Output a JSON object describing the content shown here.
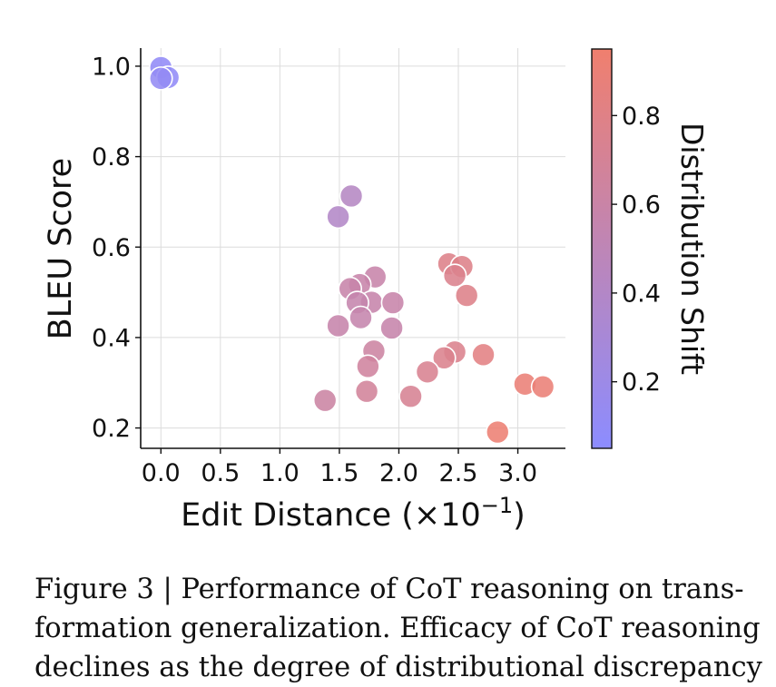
{
  "chart_data": {
    "type": "scatter",
    "xlabel_prefix": "Edit Distance (×10",
    "xlabel_exp": "−1",
    "xlabel_suffix": ")",
    "ylabel": "BLEU Score",
    "colorbar_label": "Distribution Shift",
    "xlim": [
      -0.17,
      3.4
    ],
    "ylim": [
      0.155,
      1.04
    ],
    "x_ticks": [
      0.0,
      0.5,
      1.0,
      1.5,
      2.0,
      2.5,
      3.0
    ],
    "x_tick_labels": [
      "0.0",
      "0.5",
      "1.0",
      "1.5",
      "2.0",
      "2.5",
      "3.0"
    ],
    "y_ticks": [
      0.2,
      0.4,
      0.6,
      0.8,
      1.0
    ],
    "y_tick_labels": [
      "0.2",
      "0.4",
      "0.6",
      "0.8",
      "1.0"
    ],
    "colorbar_range": [
      0.05,
      0.95
    ],
    "colorbar_ticks": [
      0.2,
      0.4,
      0.6,
      0.8
    ],
    "colorbar_tick_labels": [
      "0.2",
      "0.4",
      "0.6",
      "0.8"
    ],
    "colormap": [
      "#8c8cff",
      "#f07f6e"
    ],
    "grid": true,
    "points": [
      {
        "x": 0.0,
        "y": 0.997,
        "c": 0.1
      },
      {
        "x": 0.06,
        "y": 0.975,
        "c": 0.1
      },
      {
        "x": 0.0,
        "y": 0.973,
        "c": 0.12
      },
      {
        "x": 1.6,
        "y": 0.713,
        "c": 0.42
      },
      {
        "x": 1.49,
        "y": 0.667,
        "c": 0.4
      },
      {
        "x": 2.42,
        "y": 0.563,
        "c": 0.78
      },
      {
        "x": 2.53,
        "y": 0.557,
        "c": 0.78
      },
      {
        "x": 2.47,
        "y": 0.537,
        "c": 0.76
      },
      {
        "x": 1.8,
        "y": 0.534,
        "c": 0.58
      },
      {
        "x": 1.67,
        "y": 0.517,
        "c": 0.58
      },
      {
        "x": 1.59,
        "y": 0.508,
        "c": 0.58
      },
      {
        "x": 2.57,
        "y": 0.493,
        "c": 0.78
      },
      {
        "x": 1.77,
        "y": 0.478,
        "c": 0.57
      },
      {
        "x": 1.65,
        "y": 0.477,
        "c": 0.56
      },
      {
        "x": 1.95,
        "y": 0.477,
        "c": 0.58
      },
      {
        "x": 1.68,
        "y": 0.444,
        "c": 0.56
      },
      {
        "x": 1.49,
        "y": 0.426,
        "c": 0.57
      },
      {
        "x": 1.94,
        "y": 0.421,
        "c": 0.57
      },
      {
        "x": 2.71,
        "y": 0.362,
        "c": 0.82
      },
      {
        "x": 2.47,
        "y": 0.368,
        "c": 0.76
      },
      {
        "x": 2.38,
        "y": 0.355,
        "c": 0.76
      },
      {
        "x": 1.79,
        "y": 0.37,
        "c": 0.63
      },
      {
        "x": 1.74,
        "y": 0.336,
        "c": 0.65
      },
      {
        "x": 2.24,
        "y": 0.324,
        "c": 0.73
      },
      {
        "x": 3.06,
        "y": 0.297,
        "c": 0.9
      },
      {
        "x": 3.21,
        "y": 0.291,
        "c": 0.9
      },
      {
        "x": 1.73,
        "y": 0.281,
        "c": 0.68
      },
      {
        "x": 2.1,
        "y": 0.27,
        "c": 0.72
      },
      {
        "x": 1.38,
        "y": 0.261,
        "c": 0.62
      },
      {
        "x": 2.83,
        "y": 0.191,
        "c": 0.92
      }
    ]
  },
  "caption": {
    "lines": [
      "Figure 3 | Performance of CoT reasoning on trans-",
      "formation generalization. Efficacy of CoT reasoning",
      "declines as the degree of distributional discrepancy"
    ]
  }
}
